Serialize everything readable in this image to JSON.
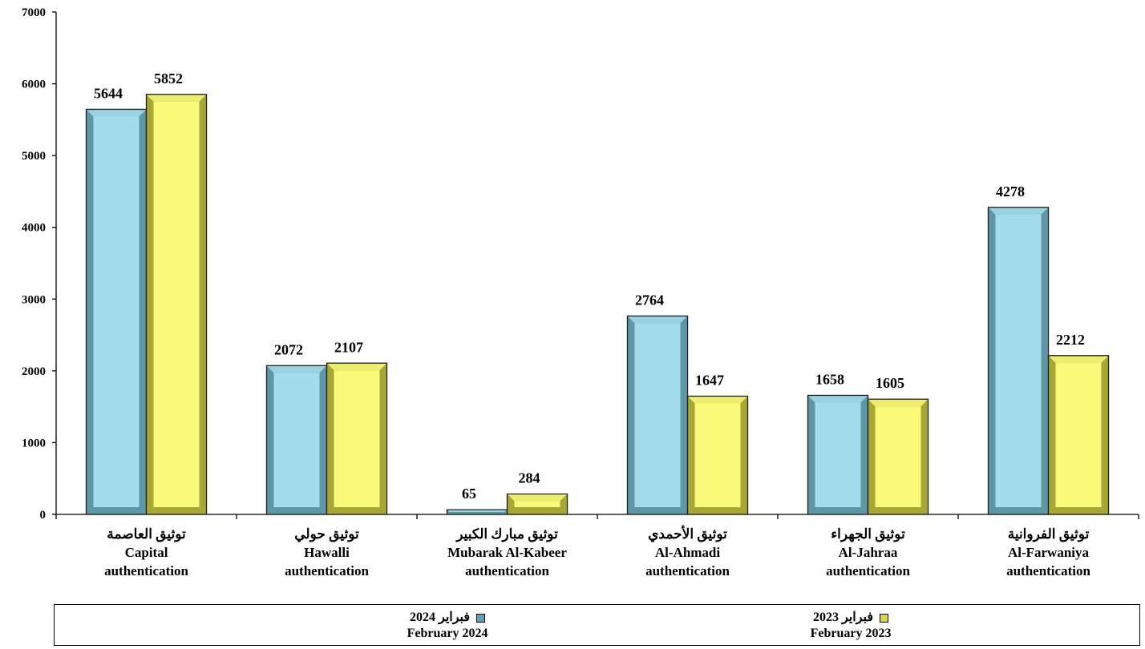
{
  "chart_data": {
    "type": "bar",
    "categories": [
      [
        "توثيق العاصمة",
        "Capital",
        "authentication"
      ],
      [
        "توثيق حولي",
        "Hawalli",
        "authentication"
      ],
      [
        "توثيق مبارك الكبير",
        "Mubarak Al-Kabeer",
        "authentication"
      ],
      [
        "توثيق الأحمدي",
        "Al-Ahmadi",
        "authentication"
      ],
      [
        "توثيق الجهراء",
        "Al-Jahraa",
        "authentication"
      ],
      [
        "توثيق الفروانية",
        "Al-Farwaniya",
        "authentication"
      ]
    ],
    "series": [
      {
        "name_ar": "فبراير 2024",
        "name": "February 2024",
        "color": "#a4dcec",
        "dark": "#5f97a6",
        "values": [
          5644,
          2072,
          65,
          2764,
          1658,
          4278
        ]
      },
      {
        "name_ar": "فبراير 2023",
        "name": "February 2023",
        "color": "#f9f97a",
        "dark": "#a7a737",
        "values": [
          5852,
          2107,
          284,
          1647,
          1605,
          2212
        ]
      }
    ],
    "ylim": [
      0,
      7000
    ],
    "yticks": [
      0,
      1000,
      2000,
      3000,
      4000,
      5000,
      6000,
      7000
    ],
    "grid": false,
    "legend_position": "bottom"
  }
}
